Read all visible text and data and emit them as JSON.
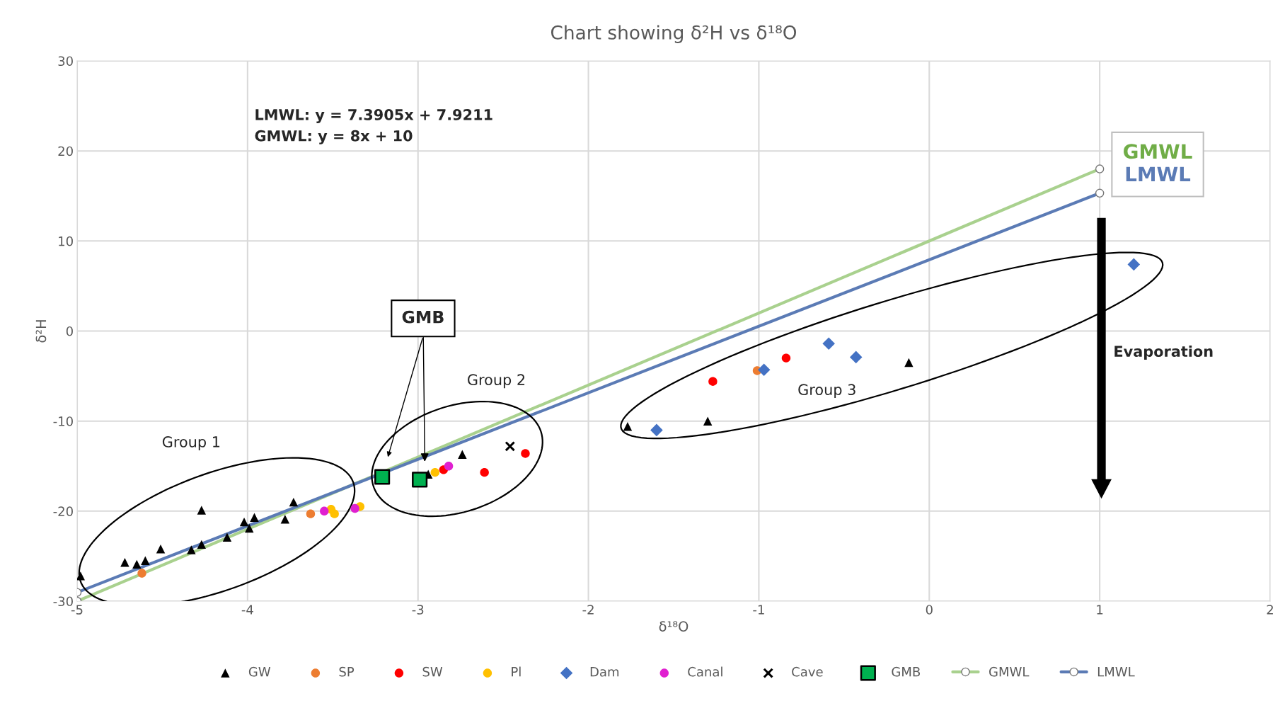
{
  "chart_data": {
    "type": "scatter",
    "title": "Chart showing δ²H vs δ¹⁸O",
    "xlabel": "δ¹⁸O",
    "ylabel": "δ²H",
    "xlim": [
      -5,
      2
    ],
    "xticks": [
      -5,
      -4,
      -3,
      -2,
      -1,
      0,
      1,
      2
    ],
    "ylim": [
      -30,
      30
    ],
    "yticks": [
      -30,
      -20,
      -10,
      0,
      10,
      20,
      30
    ],
    "grid": true,
    "legend": "bottom",
    "series": [
      {
        "name": "GW",
        "type": "scatter",
        "marker": "triangle",
        "color": "#000000",
        "x": [
          -4.98,
          -4.72,
          -4.65,
          -4.6,
          -4.51,
          -4.33,
          -4.27,
          -4.12,
          -4.02,
          -3.99,
          -3.96,
          -4.27,
          -3.78,
          -3.73,
          -2.94,
          -2.74,
          -1.77,
          -1.3,
          -0.12
        ],
        "values": [
          -27.2,
          -25.7,
          -25.9,
          -25.5,
          -24.2,
          -24.3,
          -23.7,
          -22.9,
          -21.2,
          -21.9,
          -20.7,
          -19.9,
          -20.9,
          -19.0,
          -15.9,
          -13.7,
          -10.6,
          -10.0,
          -3.5
        ]
      },
      {
        "name": "SP",
        "type": "scatter",
        "marker": "circle",
        "color": "#ed7d31",
        "x": [
          -4.62,
          -3.63,
          -1.01
        ],
        "values": [
          -26.9,
          -20.3,
          -4.4
        ]
      },
      {
        "name": "SW",
        "type": "scatter",
        "marker": "circle",
        "color": "#ff0000",
        "x": [
          -2.85,
          -2.61,
          -2.37,
          -1.27,
          -0.84
        ],
        "values": [
          -15.4,
          -15.7,
          -13.6,
          -5.6,
          -3.0
        ]
      },
      {
        "name": "Pl",
        "type": "scatter",
        "marker": "circle",
        "color": "#ffc000",
        "x": [
          -3.51,
          -3.49,
          -3.34,
          -2.9
        ],
        "values": [
          -19.8,
          -20.3,
          -19.5,
          -15.7
        ]
      },
      {
        "name": "Dam",
        "type": "scatter",
        "marker": "diamond",
        "color": "#4472c4",
        "x": [
          -1.6,
          -0.97,
          -0.59,
          -0.43,
          1.2
        ],
        "values": [
          -11.0,
          -4.3,
          -1.4,
          -2.9,
          7.4
        ]
      },
      {
        "name": "Canal",
        "type": "scatter",
        "marker": "circle",
        "color": "#e020d0",
        "x": [
          -3.55,
          -3.37,
          -2.82
        ],
        "values": [
          -20.0,
          -19.7,
          -15.0
        ]
      },
      {
        "name": "Cave",
        "type": "scatter",
        "marker": "cross",
        "color": "#000000",
        "x": [
          -2.46
        ],
        "values": [
          -12.8
        ]
      },
      {
        "name": "GMB",
        "type": "scatter",
        "marker": "square",
        "color": "#00b050",
        "x": [
          -3.21,
          -2.99
        ],
        "values": [
          -16.2,
          -16.5
        ]
      },
      {
        "name": "GMWL",
        "type": "line",
        "marker": "circle",
        "color": "#a9d18e",
        "x": [
          -5,
          1
        ],
        "values": [
          -30,
          18
        ]
      },
      {
        "name": "LMWL",
        "type": "line",
        "marker": "circle",
        "color": "#5b7bb5",
        "x": [
          -5,
          1
        ],
        "values": [
          -29.03,
          15.31
        ]
      }
    ],
    "annotations": [
      "LMWL: y = 7.3905x + 7.9211\nGMWL: y = 8x + 10",
      "Group 1",
      "Group 2",
      "Group 3",
      {
        "text": "GMB",
        "x": -2.96,
        "y": -14.5
      },
      "Evaporation",
      "GMWL",
      "LMWL"
    ]
  }
}
